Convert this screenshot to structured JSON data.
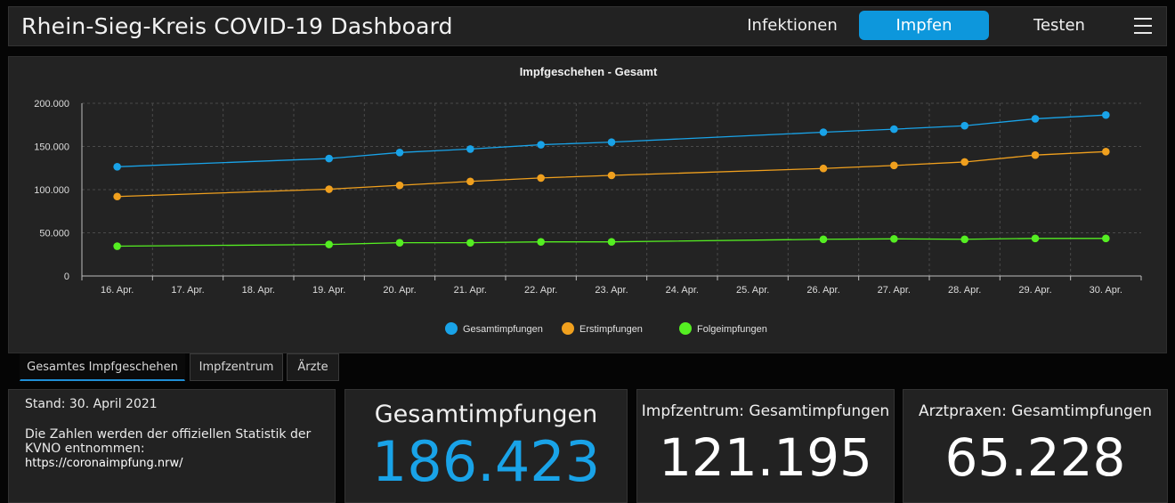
{
  "header": {
    "title": "Rhein-Sieg-Kreis COVID-19 Dashboard",
    "tabs": [
      {
        "label": "Infektionen",
        "active": false
      },
      {
        "label": "Impfen",
        "active": true
      },
      {
        "label": "Testen",
        "active": false
      }
    ],
    "menu_icon": "hamburger-menu-icon"
  },
  "subtabs": [
    {
      "label": "Gesamtes Impfgeschehen",
      "active": true
    },
    {
      "label": "Impfzentrum",
      "active": false
    },
    {
      "label": "Ärzte",
      "active": false
    }
  ],
  "info": {
    "stand": "Stand: 30. April 2021",
    "description": "Die Zahlen werden der offiziellen Statistik der KVNO entnommen:",
    "link": "https://coronaimpfung.nrw/"
  },
  "kpis": [
    {
      "label": "Gesamtimpfungen",
      "value": "186.423",
      "color": "#19a3e8"
    },
    {
      "label": "Impfzentrum: Gesamtimpfungen",
      "value": "121.195",
      "color": "#ffffff"
    },
    {
      "label": "Arztpraxen: Gesamtimpfungen",
      "value": "65.228",
      "color": "#ffffff"
    }
  ],
  "chart_data": {
    "type": "line",
    "title": "Impfgeschehen - Gesamt",
    "categories": [
      "16. Apr.",
      "17. Apr.",
      "18. Apr.",
      "19. Apr.",
      "20. Apr.",
      "21. Apr.",
      "22. Apr.",
      "23. Apr.",
      "24. Apr.",
      "25. Apr.",
      "26. Apr.",
      "27. Apr.",
      "28. Apr.",
      "29. Apr.",
      "30. Apr."
    ],
    "y_ticks": [
      "0",
      "50.000",
      "100.000",
      "150.000",
      "200.000"
    ],
    "ylim": [
      0,
      200000
    ],
    "grid": true,
    "legend_position": "bottom",
    "series": [
      {
        "name": "Gesamtimpfungen",
        "color": "#19a3e8",
        "values": [
          126500,
          null,
          null,
          136000,
          143000,
          147000,
          152000,
          155000,
          null,
          null,
          166500,
          170000,
          174000,
          182000,
          186423
        ]
      },
      {
        "name": "Erstimpfungen",
        "color": "#f0a01e",
        "values": [
          92000,
          null,
          null,
          100500,
          105000,
          109500,
          113500,
          116500,
          null,
          null,
          124500,
          128000,
          132000,
          140000,
          144000
        ]
      },
      {
        "name": "Folgeimpfungen",
        "color": "#55ee22",
        "values": [
          34500,
          null,
          null,
          36500,
          38500,
          38500,
          39500,
          39500,
          null,
          null,
          42500,
          43000,
          42500,
          43500,
          43500
        ]
      }
    ]
  }
}
